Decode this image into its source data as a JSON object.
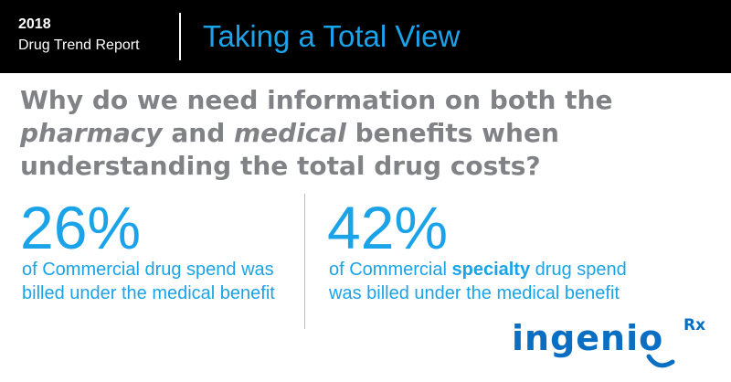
{
  "header": {
    "year": "2018",
    "report": "Drug Trend Report",
    "title": "Taking a Total View"
  },
  "question": {
    "line1": "Why do we need information on both the",
    "pharmacy": "pharmacy",
    "and": "and",
    "medical": "medical",
    "line2_rest": "benefits when",
    "line3": "understanding the total drug costs?"
  },
  "stats": [
    {
      "value": "26%",
      "line1": "of Commercial drug spend was",
      "line2": "billed under the medical benefit"
    },
    {
      "value": "42%",
      "line1_pre": "of Commercial",
      "line1_bold": "specialty",
      "line1_post": "drug spend",
      "line2": "was billed under the medical benefit"
    }
  ],
  "logo": {
    "word": "ingenio",
    "suffix": "Rx"
  },
  "colors": {
    "accent": "#1aa3e8",
    "question_gray": "#808285",
    "logo_blue": "#0a6fc2",
    "header_bg": "#000000"
  }
}
